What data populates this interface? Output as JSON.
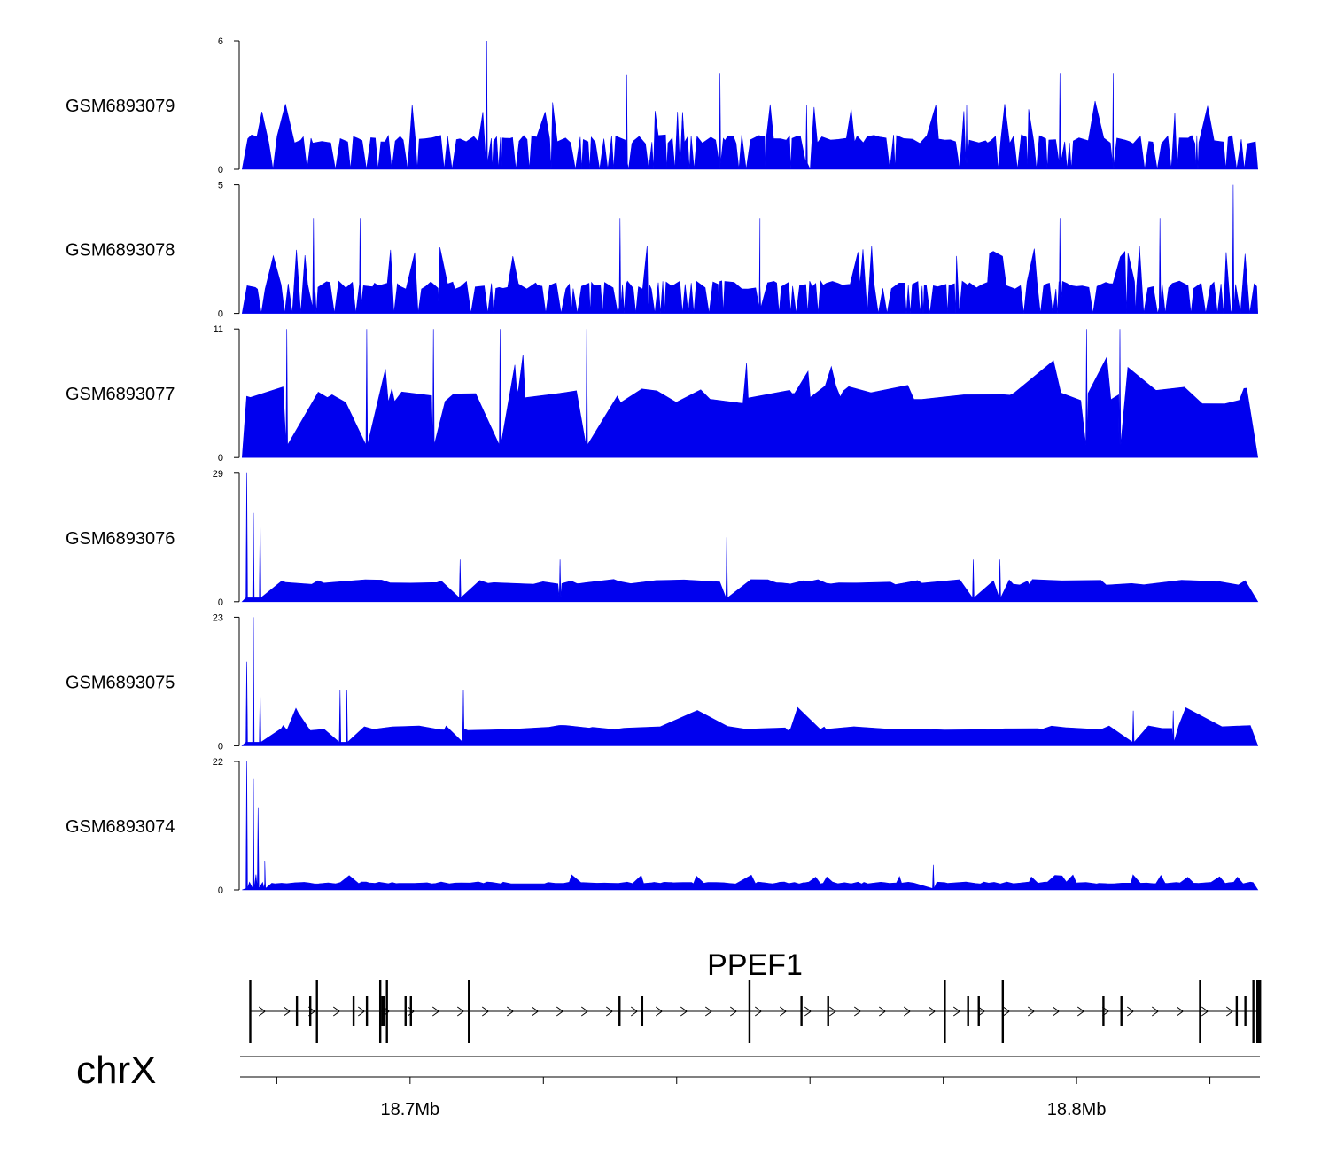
{
  "chart_data": {
    "type": "area",
    "title": "",
    "chromosome": "chrX",
    "xrange": [
      18.6745,
      18.8275
    ],
    "xunit": "Mb",
    "xticks": [
      18.68,
      18.7,
      18.72,
      18.74,
      18.76,
      18.78,
      18.8,
      18.82
    ],
    "xtick_labels": [
      {
        "pos": 18.7,
        "label": "18.7Mb"
      },
      {
        "pos": 18.8,
        "label": "18.8Mb"
      }
    ],
    "color": "#0000ee",
    "tracks": [
      {
        "name": "GSM6893079",
        "ymax": 6,
        "ymax_label": "6",
        "ymin_label": "0",
        "baseline": 1.4,
        "spike": 2.9,
        "spike_rate": 0.11,
        "gap": 0.0,
        "peaks": [
          [
            18.7115,
            6
          ],
          [
            18.7325,
            4.4
          ],
          [
            18.7465,
            4.5
          ],
          [
            18.7975,
            4.5
          ],
          [
            18.8055,
            4.5
          ],
          [
            18.7835,
            3
          ],
          [
            18.7595,
            3
          ]
        ]
      },
      {
        "name": "GSM6893078",
        "ymax": 5,
        "ymax_label": "5",
        "ymin_label": "0",
        "baseline": 1.1,
        "spike": 2.4,
        "spike_rate": 0.13,
        "gap": 0.0,
        "peaks": [
          [
            18.8235,
            5
          ],
          [
            18.6925,
            3.7
          ],
          [
            18.6855,
            3.7
          ],
          [
            18.7975,
            3.7
          ],
          [
            18.8125,
            3.7
          ],
          [
            18.7315,
            3.7
          ],
          [
            18.7525,
            3.7
          ]
        ]
      },
      {
        "name": "GSM6893077",
        "ymax": 11,
        "ymax_label": "11",
        "ymin_label": "0",
        "baseline": 5.4,
        "spike": 8.0,
        "spike_rate": 0.05,
        "gap": 0.42,
        "peaks": [
          [
            18.6815,
            11
          ],
          [
            18.6935,
            11
          ],
          [
            18.7035,
            11
          ],
          [
            18.7135,
            11
          ],
          [
            18.7265,
            11
          ],
          [
            18.8015,
            11
          ],
          [
            18.8065,
            11
          ]
        ]
      },
      {
        "name": "GSM6893076",
        "ymax": 29,
        "ymax_label": "29",
        "ymin_label": "0",
        "baseline": 4.4,
        "spike": 9.0,
        "spike_rate": 0.04,
        "gap": 0.5,
        "peaks": [
          [
            18.6755,
            29
          ],
          [
            18.6765,
            20
          ],
          [
            18.6775,
            19
          ],
          [
            18.7475,
            14.5
          ],
          [
            18.7845,
            9.5
          ],
          [
            18.7885,
            9.5
          ],
          [
            18.7075,
            9.5
          ],
          [
            18.7225,
            9.5
          ]
        ]
      },
      {
        "name": "GSM6893075",
        "ymax": 23,
        "ymax_label": "23",
        "ymin_label": "0",
        "baseline": 3.2,
        "spike": 6.3,
        "spike_rate": 0.05,
        "gap": 0.45,
        "peaks": [
          [
            18.6765,
            23
          ],
          [
            18.6755,
            15
          ],
          [
            18.6775,
            10
          ],
          [
            18.6895,
            10
          ],
          [
            18.6905,
            10
          ],
          [
            18.708,
            10
          ],
          [
            18.8145,
            6.3
          ],
          [
            18.8085,
            6.3
          ]
        ]
      },
      {
        "name": "GSM6893074",
        "ymax": 22,
        "ymax_label": "22",
        "ymin_label": "0",
        "baseline": 1.2,
        "spike": 2.4,
        "spike_rate": 0.1,
        "gap": 0.05,
        "peaks": [
          [
            18.6755,
            22
          ],
          [
            18.6765,
            19
          ],
          [
            18.6772,
            14
          ],
          [
            18.6782,
            5
          ],
          [
            18.7785,
            4.3
          ]
        ]
      }
    ],
    "gene_track": {
      "gene": "PPEF1",
      "strand": "+",
      "exons_mb": [
        18.676,
        18.683,
        18.685,
        18.686,
        18.6915,
        18.6935,
        18.6955,
        18.6958,
        18.6961,
        18.6965,
        18.6993,
        18.7001,
        18.7088,
        18.7314,
        18.7348,
        18.7509,
        18.7587,
        18.7627,
        18.7802,
        18.7837,
        18.7853,
        18.7889,
        18.804,
        18.8067,
        18.8185,
        18.824,
        18.8253,
        18.8265,
        18.8271,
        18.8273,
        18.8275
      ]
    }
  }
}
